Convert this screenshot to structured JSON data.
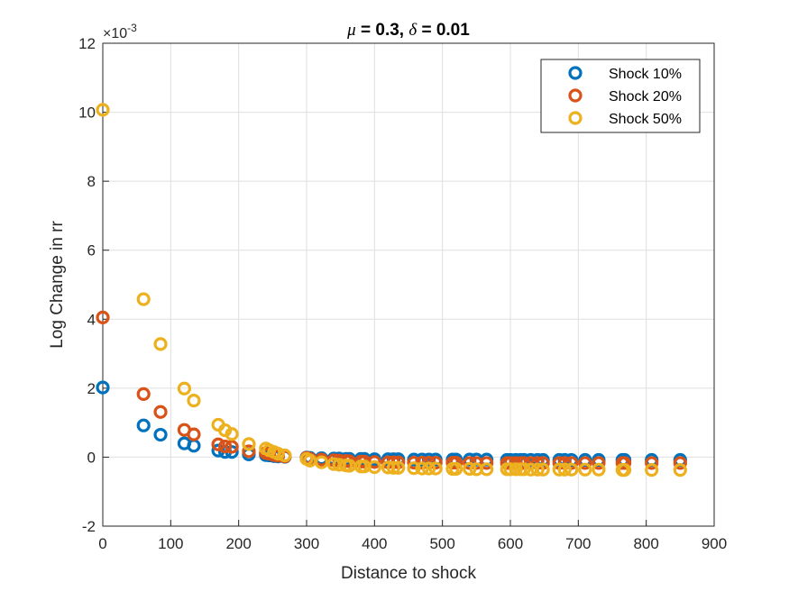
{
  "chart_data": {
    "type": "scatter",
    "title_parts": {
      "mu_symbol": "μ",
      "mu_text": " = 0.3, ",
      "delta_symbol": "δ",
      "delta_text": " = 0.01"
    },
    "xlabel": "Distance to shock",
    "ylabel": "Log Change in rr",
    "y_multiplier_base": "×10",
    "y_multiplier_exp": "-3",
    "xlim": [
      0,
      900
    ],
    "ylim": [
      -2,
      12
    ],
    "xticks": [
      0,
      100,
      200,
      300,
      400,
      500,
      600,
      700,
      800,
      900
    ],
    "yticks": [
      -2,
      0,
      2,
      4,
      6,
      8,
      10,
      12
    ],
    "y_units_scale": "1e-3",
    "grid": true,
    "legend_position": "top-right",
    "x": [
      0,
      60,
      85,
      120,
      134,
      170,
      180,
      190,
      215,
      240,
      245,
      252,
      258,
      268,
      300,
      305,
      322,
      340,
      348,
      358,
      363,
      380,
      385,
      400,
      420,
      428,
      435,
      458,
      470,
      480,
      490,
      515,
      520,
      540,
      550,
      565,
      595,
      600,
      608,
      615,
      620,
      630,
      640,
      648,
      672,
      680,
      690,
      710,
      730,
      765,
      768,
      808,
      850
    ],
    "series": [
      {
        "name": "Shock 10%",
        "color": "#0072BD",
        "values": [
          2.02,
          0.92,
          0.65,
          0.4,
          0.33,
          0.19,
          0.15,
          0.15,
          0.08,
          0.06,
          0.05,
          0.03,
          0.02,
          0.01,
          -0.01,
          -0.02,
          -0.03,
          -0.04,
          -0.04,
          -0.05,
          -0.05,
          -0.05,
          -0.05,
          -0.06,
          -0.06,
          -0.06,
          -0.06,
          -0.07,
          -0.07,
          -0.07,
          -0.07,
          -0.07,
          -0.07,
          -0.07,
          -0.07,
          -0.07,
          -0.08,
          -0.08,
          -0.08,
          -0.08,
          -0.08,
          -0.08,
          -0.08,
          -0.08,
          -0.08,
          -0.08,
          -0.08,
          -0.08,
          -0.08,
          -0.08,
          -0.08,
          -0.08,
          -0.08
        ]
      },
      {
        "name": "Shock 20%",
        "color": "#D95319",
        "values": [
          4.05,
          1.83,
          1.31,
          0.79,
          0.66,
          0.37,
          0.31,
          0.3,
          0.17,
          0.12,
          0.1,
          0.06,
          0.04,
          0.02,
          -0.02,
          -0.05,
          -0.07,
          -0.09,
          -0.1,
          -0.11,
          -0.12,
          -0.13,
          -0.13,
          -0.14,
          -0.15,
          -0.15,
          -0.15,
          -0.16,
          -0.16,
          -0.16,
          -0.16,
          -0.16,
          -0.16,
          -0.17,
          -0.17,
          -0.17,
          -0.17,
          -0.17,
          -0.17,
          -0.17,
          -0.17,
          -0.17,
          -0.17,
          -0.17,
          -0.17,
          -0.17,
          -0.17,
          -0.17,
          -0.17,
          -0.17,
          -0.17,
          -0.17,
          -0.17
        ]
      },
      {
        "name": "Shock 50%",
        "color": "#EDB120",
        "values": [
          10.07,
          4.58,
          3.28,
          1.99,
          1.64,
          0.94,
          0.78,
          0.67,
          0.38,
          0.25,
          0.2,
          0.15,
          0.1,
          0.05,
          -0.05,
          -0.1,
          -0.15,
          -0.2,
          -0.22,
          -0.24,
          -0.25,
          -0.27,
          -0.27,
          -0.29,
          -0.3,
          -0.31,
          -0.31,
          -0.32,
          -0.33,
          -0.33,
          -0.33,
          -0.34,
          -0.34,
          -0.34,
          -0.35,
          -0.35,
          -0.35,
          -0.35,
          -0.35,
          -0.35,
          -0.35,
          -0.36,
          -0.36,
          -0.36,
          -0.36,
          -0.36,
          -0.36,
          -0.36,
          -0.36,
          -0.37,
          -0.37,
          -0.37,
          -0.37
        ]
      }
    ]
  }
}
